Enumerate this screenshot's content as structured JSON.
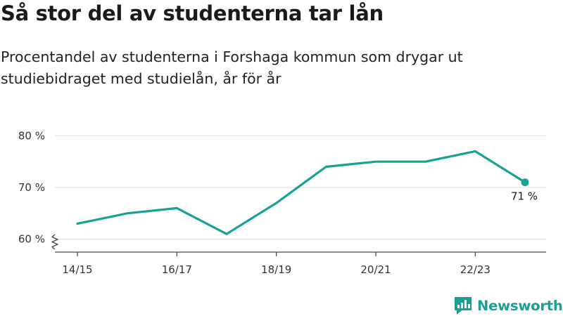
{
  "header": {
    "title": "Så stor del av studenterna tar lån",
    "subtitle": "Procentandel av studenterna i Forshaga kommun som drygar ut studiebidraget med studielån, år för år"
  },
  "brand": {
    "name": "Newsworthy",
    "logo_icon": "newsworthy-logo-icon",
    "color": "#18a096"
  },
  "chart_data": {
    "type": "line",
    "x": [
      "14/15",
      "15/16",
      "16/17",
      "17/18",
      "18/19",
      "19/20",
      "20/21",
      "21/22",
      "22/23",
      "23/24"
    ],
    "xticks": [
      "14/15",
      "16/17",
      "18/19",
      "20/21",
      "22/23"
    ],
    "series": [
      {
        "values": [
          63,
          65,
          66,
          61,
          67,
          74,
          75,
          75,
          77,
          71
        ],
        "color": "#17a293"
      }
    ],
    "yticks": [
      60,
      70,
      80
    ],
    "ytick_labels": [
      "60 %",
      "70 %",
      "80 %"
    ],
    "ylim": [
      57.5,
      81
    ],
    "y_axis_break": true,
    "grid": true,
    "last_point_label": "71 %",
    "title": "",
    "xlabel": "",
    "ylabel": ""
  }
}
